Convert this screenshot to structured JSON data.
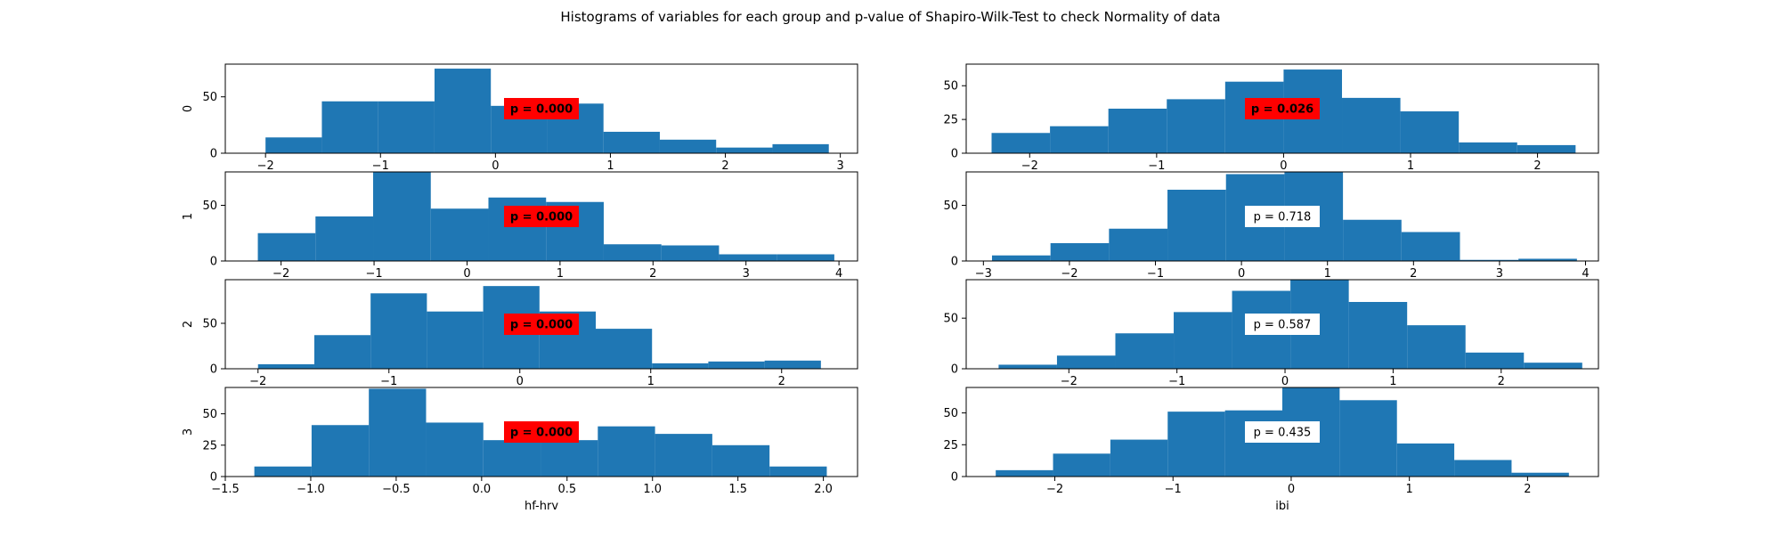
{
  "title": "Histograms of variables for each group and p-value of Shapiro-Wilk-Test to check Normality of data",
  "colors": {
    "bar": "#1f77b4",
    "significant_box": "#ff0000",
    "normal_box": "#ffffff"
  },
  "chart_data": [
    {
      "type": "bar",
      "variable": "hf-hrv",
      "group": "0",
      "ylabel": "0",
      "xlabel": "",
      "xlim": [
        -2.35,
        3.15
      ],
      "ylim": [
        0,
        79
      ],
      "xticks": [
        "−2",
        "−1",
        "0",
        "1",
        "2",
        "3"
      ],
      "yticks": [
        "0",
        "50"
      ],
      "bin_edges": [
        -2.0,
        -1.51,
        -1.02,
        -0.53,
        -0.04,
        0.45,
        0.94,
        1.43,
        1.92,
        2.41,
        2.9
      ],
      "values": [
        14,
        46,
        46,
        75,
        42,
        44,
        19,
        12,
        5,
        8
      ],
      "annotation": "p = 0.000",
      "significant": true
    },
    {
      "type": "bar",
      "variable": "ibi",
      "group": "0",
      "ylabel": "",
      "xlabel": "",
      "xlim": [
        -2.5,
        2.48
      ],
      "ylim": [
        0,
        66
      ],
      "xticks": [
        "−2",
        "−1",
        "0",
        "1",
        "2"
      ],
      "yticks": [
        "0",
        "25",
        "50"
      ],
      "bin_edges": [
        -2.3,
        -1.84,
        -1.38,
        -0.92,
        -0.46,
        0.0,
        0.46,
        0.92,
        1.38,
        1.84,
        2.3
      ],
      "values": [
        15,
        20,
        33,
        40,
        53,
        62,
        41,
        31,
        8,
        6
      ],
      "annotation": "p = 0.026",
      "significant": true
    },
    {
      "type": "bar",
      "variable": "hf-hrv",
      "group": "1",
      "ylabel": "1",
      "xlabel": "",
      "xlim": [
        -2.6,
        4.2
      ],
      "ylim": [
        0,
        80
      ],
      "xticks": [
        "−2",
        "−1",
        "0",
        "1",
        "2",
        "3",
        "4"
      ],
      "yticks": [
        "0",
        "50"
      ],
      "bin_edges": [
        -2.25,
        -1.63,
        -1.01,
        -0.39,
        0.23,
        0.85,
        1.47,
        2.09,
        2.71,
        3.33,
        3.95
      ],
      "values": [
        25,
        40,
        80,
        47,
        57,
        53,
        15,
        14,
        6,
        6
      ],
      "annotation": "p = 0.000",
      "significant": true
    },
    {
      "type": "bar",
      "variable": "ibi",
      "group": "1",
      "ylabel": "",
      "xlabel": "",
      "xlim": [
        -3.2,
        4.15
      ],
      "ylim": [
        0,
        80
      ],
      "xticks": [
        "−3",
        "−2",
        "−1",
        "0",
        "1",
        "2",
        "3",
        "4"
      ],
      "yticks": [
        "0",
        "50"
      ],
      "bin_edges": [
        -2.9,
        -2.22,
        -1.54,
        -0.86,
        -0.18,
        0.5,
        1.18,
        1.86,
        2.54,
        3.22,
        3.9
      ],
      "values": [
        5,
        16,
        29,
        64,
        78,
        80,
        37,
        26,
        1,
        2
      ],
      "annotation": "p = 0.718",
      "significant": false
    },
    {
      "type": "bar",
      "variable": "hf-hrv",
      "group": "2",
      "ylabel": "2",
      "xlabel": "",
      "xlim": [
        -2.25,
        2.58
      ],
      "ylim": [
        0,
        98
      ],
      "xticks": [
        "−2",
        "−1",
        "0",
        "1",
        "2"
      ],
      "yticks": [
        "0",
        "50"
      ],
      "bin_edges": [
        -2.0,
        -1.57,
        -1.14,
        -0.71,
        -0.28,
        0.15,
        0.58,
        1.01,
        1.44,
        1.87,
        2.3
      ],
      "values": [
        5,
        37,
        83,
        63,
        91,
        63,
        44,
        6,
        8,
        9
      ],
      "annotation": "p = 0.000",
      "significant": true
    },
    {
      "type": "bar",
      "variable": "ibi",
      "group": "2",
      "ylabel": "",
      "xlabel": "",
      "xlim": [
        -2.95,
        2.9
      ],
      "ylim": [
        0,
        88
      ],
      "xticks": [
        "−2",
        "−1",
        "0",
        "1",
        "2"
      ],
      "yticks": [
        "0",
        "50"
      ],
      "bin_edges": [
        -2.65,
        -2.11,
        -1.57,
        -1.03,
        -0.49,
        0.05,
        0.59,
        1.13,
        1.67,
        2.21,
        2.75
      ],
      "values": [
        4,
        13,
        35,
        56,
        77,
        88,
        66,
        43,
        16,
        6
      ],
      "annotation": "p = 0.587",
      "significant": false
    },
    {
      "type": "bar",
      "variable": "hf-hrv",
      "group": "3",
      "ylabel": "3",
      "xlabel": "hf-hrv",
      "xlim": [
        -1.5,
        2.2
      ],
      "ylim": [
        0,
        71
      ],
      "xticks": [
        "−1.5",
        "−1.0",
        "−0.5",
        "0.0",
        "0.5",
        "1.0",
        "1.5",
        "2.0"
      ],
      "yticks": [
        "0",
        "25",
        "50"
      ],
      "bin_edges": [
        -1.33,
        -0.995,
        -0.66,
        -0.325,
        0.01,
        0.345,
        0.68,
        1.015,
        1.35,
        1.685,
        2.02
      ],
      "values": [
        8,
        41,
        70,
        43,
        29,
        29,
        40,
        34,
        25,
        8
      ],
      "annotation": "p = 0.000",
      "significant": true
    },
    {
      "type": "bar",
      "variable": "ibi",
      "group": "3",
      "ylabel": "",
      "xlabel": "ibi",
      "xlim": [
        -2.75,
        2.6
      ],
      "ylim": [
        0,
        70
      ],
      "xticks": [
        "−2",
        "−1",
        "0",
        "1",
        "2"
      ],
      "yticks": [
        "0",
        "25",
        "50"
      ],
      "bin_edges": [
        -2.5,
        -2.015,
        -1.53,
        -1.045,
        -0.56,
        -0.075,
        0.41,
        0.895,
        1.38,
        1.865,
        2.35
      ],
      "values": [
        5,
        18,
        29,
        51,
        52,
        70,
        60,
        26,
        13,
        3
      ],
      "annotation": "p = 0.435",
      "significant": false
    }
  ]
}
